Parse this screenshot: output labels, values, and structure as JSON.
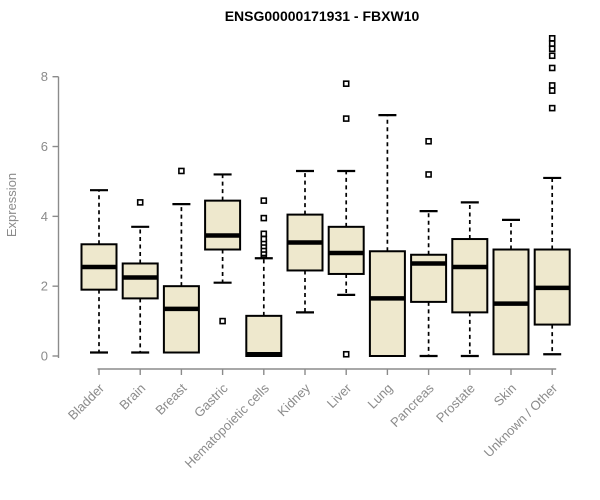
{
  "figure": {
    "background": "#ffffff"
  },
  "chart_data": {
    "type": "boxplot",
    "title": "ENSG00000171931 - FBXW10",
    "ylabel": "Expression",
    "xlabel": "",
    "ylim": [
      0,
      8
    ],
    "yticks": [
      0,
      2,
      4,
      6,
      8
    ],
    "grid": false,
    "legend": "none",
    "colors": {
      "box_fill": "#EEE8CD",
      "box_stroke": "#000000",
      "median": "#000000",
      "whisker": "#000000",
      "outlier_stroke": "#000000",
      "outlier_fill": "#ffffff",
      "axis": "#8B8B8B",
      "tick_label": "#8B8B8B",
      "title": "#000000"
    },
    "categories": [
      "Bladder",
      "Brain",
      "Breast",
      "Gastric",
      "Hematopoietic cells",
      "Kidney",
      "Liver",
      "Lung",
      "Pancreas",
      "Prostate",
      "Skin",
      "Unknown / Other"
    ],
    "boxes": [
      {
        "label": "Bladder",
        "whisker_low": 0.1,
        "q1": 1.9,
        "median": 2.55,
        "q3": 3.2,
        "whisker_high": 4.75,
        "outliers": []
      },
      {
        "label": "Brain",
        "whisker_low": 0.1,
        "q1": 1.65,
        "median": 2.25,
        "q3": 2.65,
        "whisker_high": 3.7,
        "outliers": [
          4.4
        ]
      },
      {
        "label": "Breast",
        "whisker_low": 0.1,
        "q1": 0.1,
        "median": 1.35,
        "q3": 2.0,
        "whisker_high": 4.35,
        "outliers": [
          5.3
        ]
      },
      {
        "label": "Gastric",
        "whisker_low": 2.1,
        "q1": 3.05,
        "median": 3.45,
        "q3": 4.45,
        "whisker_high": 5.2,
        "outliers": [
          1.0
        ]
      },
      {
        "label": "Hematopoietic cells",
        "whisker_low": 0.0,
        "q1": 0.0,
        "median": 0.05,
        "q3": 1.15,
        "whisker_high": 2.8,
        "outliers": [
          2.9,
          2.95,
          3.05,
          3.15,
          3.25,
          3.35,
          3.5,
          3.95,
          4.45
        ]
      },
      {
        "label": "Kidney",
        "whisker_low": 1.25,
        "q1": 2.45,
        "median": 3.25,
        "q3": 4.05,
        "whisker_high": 5.3,
        "outliers": []
      },
      {
        "label": "Liver",
        "whisker_low": 1.75,
        "q1": 2.35,
        "median": 2.95,
        "q3": 3.7,
        "whisker_high": 5.3,
        "outliers": [
          7.8,
          6.8,
          0.05
        ]
      },
      {
        "label": "Lung",
        "whisker_low": 0.0,
        "q1": 0.0,
        "median": 1.65,
        "q3": 3.0,
        "whisker_high": 6.9,
        "outliers": []
      },
      {
        "label": "Pancreas",
        "whisker_low": 0.0,
        "q1": 1.55,
        "median": 2.65,
        "q3": 2.9,
        "whisker_high": 4.15,
        "outliers": [
          6.15,
          5.2
        ]
      },
      {
        "label": "Prostate",
        "whisker_low": 0.0,
        "q1": 1.25,
        "median": 2.55,
        "q3": 3.35,
        "whisker_high": 4.4,
        "outliers": []
      },
      {
        "label": "Skin",
        "whisker_low": 0.05,
        "q1": 0.05,
        "median": 1.5,
        "q3": 3.05,
        "whisker_high": 3.9,
        "outliers": []
      },
      {
        "label": "Unknown / Other",
        "whisker_low": 0.05,
        "q1": 0.9,
        "median": 1.95,
        "q3": 3.05,
        "whisker_high": 5.1,
        "outliers": [
          9.1,
          8.95,
          8.8,
          8.6,
          8.25,
          7.75,
          7.6,
          7.1
        ]
      }
    ]
  }
}
